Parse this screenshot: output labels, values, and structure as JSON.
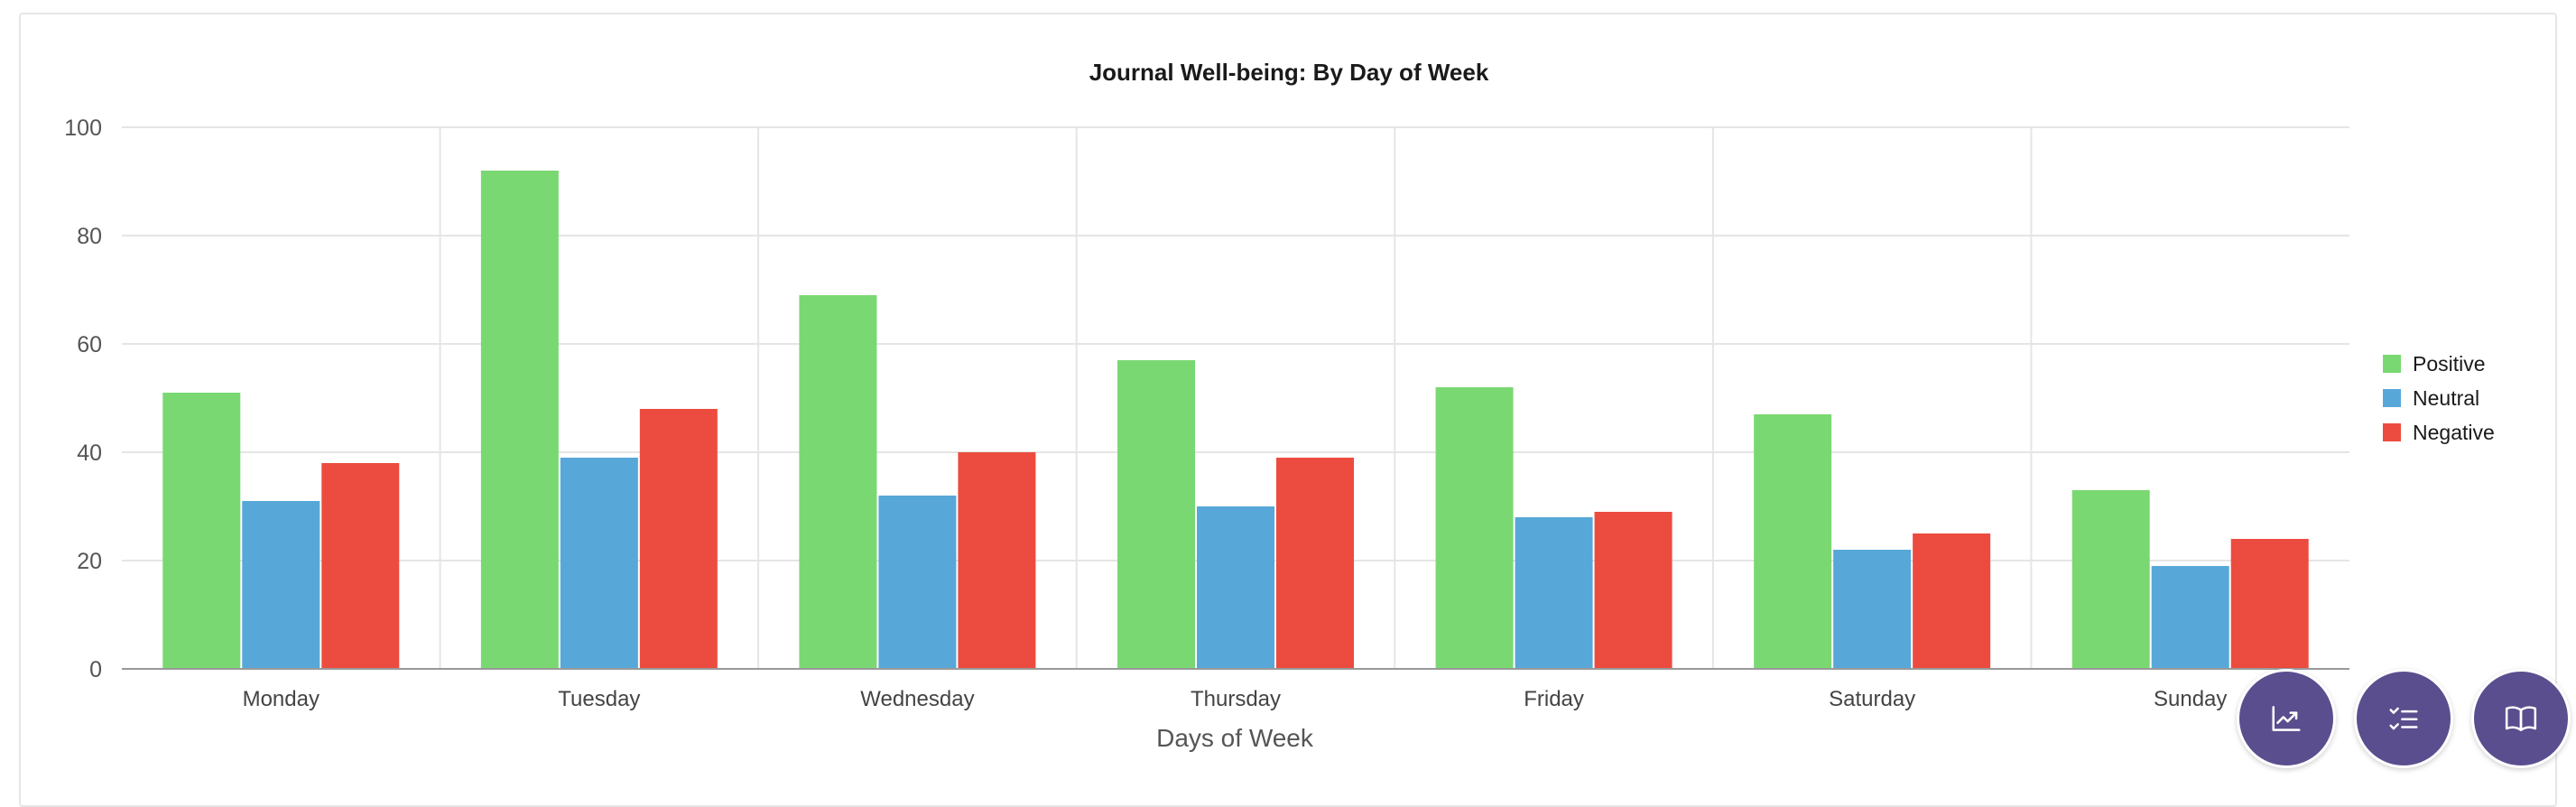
{
  "chart_data": {
    "type": "bar",
    "title": "Journal Well-being: By Day of Week",
    "xlabel": "Days of Week",
    "ylabel": "",
    "ylim": [
      0,
      100
    ],
    "yticks": [
      0,
      20,
      40,
      60,
      80,
      100
    ],
    "grid": true,
    "legend_position": "right",
    "categories": [
      "Monday",
      "Tuesday",
      "Wednesday",
      "Thursday",
      "Friday",
      "Saturday",
      "Sunday"
    ],
    "series": [
      {
        "name": "Positive",
        "color": "#7ad872",
        "values": [
          51,
          92,
          69,
          57,
          52,
          47,
          33
        ]
      },
      {
        "name": "Neutral",
        "color": "#57a8d8",
        "values": [
          31,
          39,
          32,
          30,
          28,
          22,
          19
        ]
      },
      {
        "name": "Negative",
        "color": "#ec4c3f",
        "values": [
          38,
          48,
          40,
          39,
          29,
          25,
          24
        ]
      }
    ]
  },
  "fabs": [
    {
      "icon": "trend-chart-icon",
      "label": "Trends"
    },
    {
      "icon": "checklist-icon",
      "label": "Checklist"
    },
    {
      "icon": "open-book-icon",
      "label": "Journal"
    }
  ],
  "colors": {
    "fab_background": "#5b4e8e",
    "gridline": "#e5e5e5",
    "axis": "#999999"
  }
}
